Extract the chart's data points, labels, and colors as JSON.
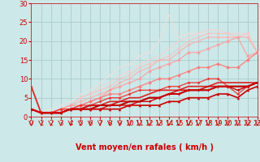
{
  "bg_color": "#cce8e8",
  "grid_color": "#aacccc",
  "xlabel": "Vent moyen/en rafales ( km/h )",
  "xlabel_color": "#cc0000",
  "xlabel_fontsize": 7,
  "tick_color": "#cc0000",
  "tick_fontsize": 6,
  "xlim": [
    0,
    23
  ],
  "ylim": [
    0,
    30
  ],
  "yticks": [
    0,
    5,
    10,
    15,
    20,
    25,
    30
  ],
  "xticks": [
    0,
    1,
    2,
    3,
    4,
    5,
    6,
    7,
    8,
    9,
    10,
    11,
    12,
    13,
    14,
    15,
    16,
    17,
    18,
    19,
    20,
    21,
    22,
    23
  ],
  "series": [
    {
      "x": [
        0,
        1,
        2,
        3,
        4,
        5,
        6,
        7,
        8,
        9,
        10,
        11,
        12,
        13,
        14,
        15,
        16,
        17,
        18,
        19,
        20,
        21,
        22,
        23
      ],
      "y": [
        2,
        1,
        1,
        1,
        2,
        2,
        2,
        2,
        2,
        2,
        3,
        3,
        3,
        3,
        4,
        4,
        5,
        5,
        5,
        6,
        6,
        5,
        7,
        8
      ],
      "color": "#cc0000",
      "lw": 1.2,
      "marker": "^",
      "ms": 2.5,
      "alpha": 1.0,
      "zorder": 5
    },
    {
      "x": [
        0,
        1,
        2,
        3,
        4,
        5,
        6,
        7,
        8,
        9,
        10,
        11,
        12,
        13,
        14,
        15,
        16,
        17,
        18,
        19,
        20,
        21,
        22,
        23
      ],
      "y": [
        2,
        1,
        1,
        1,
        2,
        2,
        2,
        2,
        3,
        3,
        3,
        4,
        4,
        5,
        6,
        6,
        7,
        7,
        7,
        8,
        8,
        7,
        8,
        9
      ],
      "color": "#cc0000",
      "lw": 1.0,
      "marker": "P",
      "ms": 2.5,
      "alpha": 1.0,
      "zorder": 5
    },
    {
      "x": [
        0,
        1,
        2,
        3,
        4,
        5,
        6,
        7,
        8,
        9,
        10,
        11,
        12,
        13,
        14,
        15,
        16,
        17,
        18,
        19,
        20,
        21,
        22,
        23
      ],
      "y": [
        2,
        1,
        1,
        1,
        2,
        2,
        2,
        3,
        3,
        3,
        4,
        4,
        5,
        5,
        6,
        6,
        7,
        7,
        7,
        8,
        8,
        8,
        8,
        9
      ],
      "color": "#bb0000",
      "lw": 1.4,
      "marker": null,
      "ms": 0,
      "alpha": 1.0,
      "zorder": 4
    },
    {
      "x": [
        0,
        1,
        2,
        3,
        4,
        5,
        6,
        7,
        8,
        9,
        10,
        11,
        12,
        13,
        14,
        15,
        16,
        17,
        18,
        19,
        20,
        21,
        22,
        23
      ],
      "y": [
        2,
        1,
        1,
        1,
        2,
        2,
        3,
        3,
        3,
        4,
        4,
        4,
        5,
        5,
        6,
        7,
        7,
        7,
        8,
        8,
        8,
        8,
        8,
        9
      ],
      "color": "#cc1111",
      "lw": 1.2,
      "marker": null,
      "ms": 0,
      "alpha": 1.0,
      "zorder": 4
    },
    {
      "x": [
        0,
        1,
        2,
        3,
        4,
        5,
        6,
        7,
        8,
        9,
        10,
        11,
        12,
        13,
        14,
        15,
        16,
        17,
        18,
        19,
        20,
        21,
        22,
        23
      ],
      "y": [
        8,
        1,
        1,
        1,
        2,
        2,
        3,
        3,
        4,
        4,
        5,
        5,
        6,
        7,
        7,
        7,
        8,
        8,
        8,
        9,
        9,
        9,
        9,
        9
      ],
      "color": "#dd2222",
      "lw": 1.2,
      "marker": null,
      "ms": 0,
      "alpha": 1.0,
      "zorder": 4
    },
    {
      "x": [
        0,
        1,
        2,
        3,
        4,
        5,
        6,
        7,
        8,
        9,
        10,
        11,
        12,
        13,
        14,
        15,
        16,
        17,
        18,
        19,
        20,
        21,
        22,
        23
      ],
      "y": [
        2,
        1,
        1,
        2,
        2,
        3,
        3,
        4,
        5,
        5,
        6,
        7,
        7,
        7,
        8,
        8,
        9,
        9,
        10,
        10,
        8,
        6,
        8,
        9
      ],
      "color": "#ee3333",
      "lw": 1.0,
      "marker": "D",
      "ms": 2,
      "alpha": 0.9,
      "zorder": 4
    },
    {
      "x": [
        0,
        1,
        2,
        3,
        4,
        5,
        6,
        7,
        8,
        9,
        10,
        11,
        12,
        13,
        14,
        15,
        16,
        17,
        18,
        19,
        20,
        21,
        22,
        23
      ],
      "y": [
        8,
        1,
        1,
        2,
        2,
        3,
        4,
        5,
        6,
        6,
        7,
        8,
        9,
        10,
        10,
        11,
        12,
        13,
        13,
        14,
        13,
        13,
        15,
        17
      ],
      "color": "#ff7777",
      "lw": 1.0,
      "marker": "D",
      "ms": 2.5,
      "alpha": 0.85,
      "zorder": 3
    },
    {
      "x": [
        0,
        1,
        2,
        3,
        4,
        5,
        6,
        7,
        8,
        9,
        10,
        11,
        12,
        13,
        14,
        15,
        16,
        17,
        18,
        19,
        20,
        21,
        22,
        23
      ],
      "y": [
        2,
        1,
        1,
        2,
        3,
        3,
        4,
        5,
        7,
        8,
        9,
        10,
        12,
        13,
        14,
        15,
        17,
        17,
        18,
        19,
        20,
        21,
        16,
        17
      ],
      "color": "#ff9999",
      "lw": 1.0,
      "marker": "D",
      "ms": 2.5,
      "alpha": 0.75,
      "zorder": 3
    },
    {
      "x": [
        0,
        1,
        2,
        3,
        4,
        5,
        6,
        7,
        8,
        9,
        10,
        11,
        12,
        13,
        14,
        15,
        16,
        17,
        18,
        19,
        20,
        21,
        22,
        23
      ],
      "y": [
        2,
        1,
        1,
        2,
        3,
        4,
        5,
        6,
        7,
        9,
        10,
        12,
        13,
        15,
        15,
        17,
        19,
        20,
        21,
        21,
        21,
        21,
        21,
        17
      ],
      "color": "#ffaaaa",
      "lw": 1.0,
      "marker": "D",
      "ms": 2,
      "alpha": 0.7,
      "zorder": 3
    },
    {
      "x": [
        0,
        1,
        2,
        3,
        4,
        5,
        6,
        7,
        8,
        9,
        10,
        11,
        12,
        13,
        14,
        15,
        16,
        17,
        18,
        19,
        20,
        21,
        22,
        23
      ],
      "y": [
        2,
        1,
        1,
        2,
        3,
        5,
        6,
        7,
        8,
        10,
        11,
        13,
        14,
        15,
        16,
        18,
        20,
        21,
        22,
        22,
        22,
        21,
        22,
        17
      ],
      "color": "#ffbbbb",
      "lw": 1.0,
      "marker": "D",
      "ms": 2,
      "alpha": 0.65,
      "zorder": 2
    },
    {
      "x": [
        0,
        1,
        2,
        3,
        4,
        5,
        6,
        7,
        8,
        9,
        10,
        11,
        12,
        13,
        14,
        15,
        16,
        17,
        18,
        19,
        20,
        21,
        22,
        23
      ],
      "y": [
        2,
        1,
        1,
        2,
        3,
        5,
        6,
        8,
        9,
        11,
        12,
        14,
        15,
        16,
        18,
        20,
        21,
        22,
        23,
        23,
        22,
        22,
        22,
        17
      ],
      "color": "#ffcccc",
      "lw": 1.0,
      "marker": "D",
      "ms": 1.5,
      "alpha": 0.6,
      "zorder": 2
    },
    {
      "x": [
        0,
        1,
        2,
        3,
        4,
        5,
        6,
        7,
        8,
        9,
        10,
        11,
        12,
        13,
        14,
        15,
        16,
        17,
        18,
        19,
        20,
        21,
        22,
        23
      ],
      "y": [
        2,
        1,
        2,
        3,
        4,
        6,
        7,
        9,
        11,
        13,
        14,
        16,
        17,
        20,
        27,
        21,
        22,
        22,
        22,
        21,
        21,
        21,
        22,
        17
      ],
      "color": "#ffdddd",
      "lw": 1.0,
      "marker": "D",
      "ms": 1.5,
      "alpha": 0.55,
      "zorder": 2
    }
  ]
}
